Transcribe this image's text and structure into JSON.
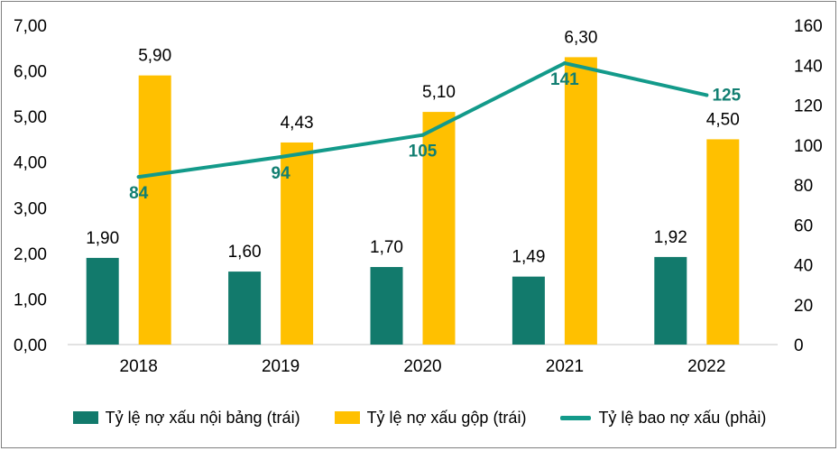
{
  "chart_data": {
    "type": "bar",
    "categories": [
      "2018",
      "2019",
      "2020",
      "2021",
      "2022"
    ],
    "series": [
      {
        "name": "Tỷ lệ nợ xấu nội bảng (trái)",
        "kind": "bar",
        "axis": "left",
        "color": "#127a6c",
        "values": [
          1.9,
          1.6,
          1.7,
          1.49,
          1.92
        ],
        "labels": [
          "1,90",
          "1,60",
          "1,70",
          "1,49",
          "1,92"
        ]
      },
      {
        "name": "Tỷ lệ nợ xấu gộp (trái)",
        "kind": "bar",
        "axis": "left",
        "color": "#ffc000",
        "values": [
          5.9,
          4.43,
          5.1,
          6.3,
          4.5
        ],
        "labels": [
          "5,90",
          "4,43",
          "5,10",
          "6,30",
          "4,50"
        ]
      },
      {
        "name": "Tỷ lệ bao nợ xấu (phải)",
        "kind": "line",
        "axis": "right",
        "color": "#139a8a",
        "values": [
          84,
          94,
          105,
          141,
          125
        ],
        "labels": [
          "84",
          "94",
          "105",
          "141",
          "125"
        ]
      }
    ],
    "left_axis": {
      "ylim": [
        0,
        7
      ],
      "ticks": [
        "0,00",
        "1,00",
        "2,00",
        "3,00",
        "4,00",
        "5,00",
        "6,00",
        "7,00"
      ]
    },
    "right_axis": {
      "ylim": [
        0,
        160
      ],
      "ticks": [
        "0",
        "20",
        "40",
        "60",
        "80",
        "100",
        "120",
        "140",
        "160"
      ]
    },
    "legend_position": "bottom"
  }
}
